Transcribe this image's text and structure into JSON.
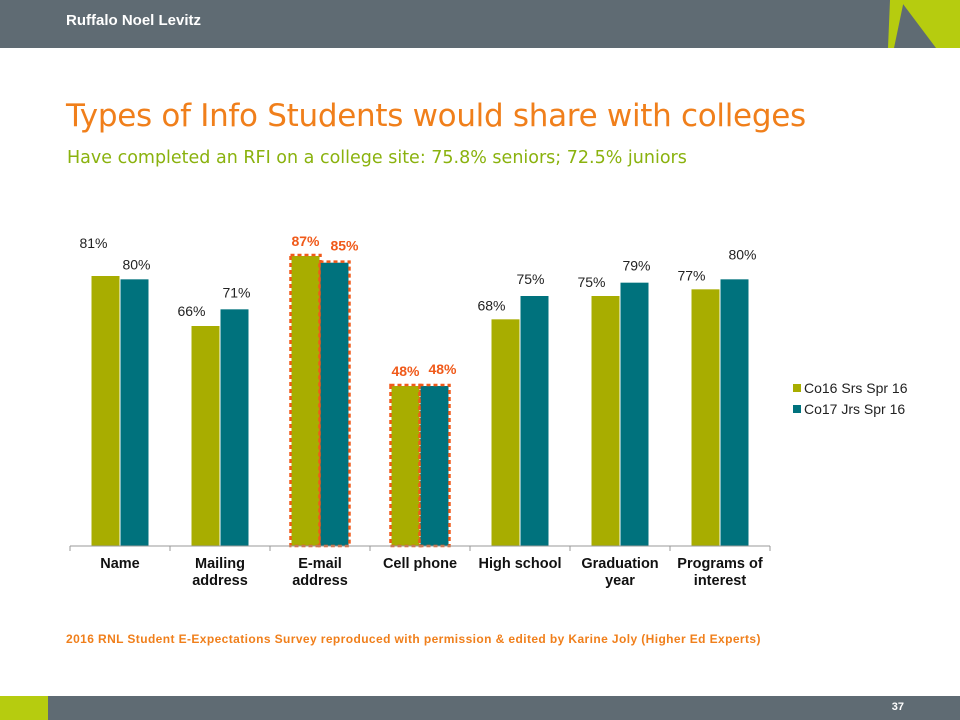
{
  "header": {
    "brand": "Ruffalo Noel Levitz"
  },
  "slide": {
    "title": "Types of Info Students would share with colleges",
    "subtitle": "Have completed an RFI on a college site: 75.8% seniors; 72.5% juniors",
    "source": "2016 RNL Student E-Expectations Survey reproduced with permission & edited by Karine Joly (Higher Ed Experts)",
    "page_number": "37"
  },
  "colors": {
    "header_bar": "#5f6b73",
    "accent_green": "#b6cc0f",
    "title_orange": "#f07f1b",
    "subtitle_green": "#8ab20e",
    "series_1": "#a8ad00",
    "series_2": "#00727d",
    "highlight": "#f05a1a"
  },
  "chart_data": {
    "type": "bar",
    "categories": [
      "Name",
      "Mailing address",
      "E-mail address",
      "Cell phone",
      "High school",
      "Graduation year",
      "Programs of interest"
    ],
    "category_lines": [
      [
        "Name"
      ],
      [
        "Mailing",
        "address"
      ],
      [
        "E-mail",
        "address"
      ],
      [
        "Cell phone"
      ],
      [
        "High school"
      ],
      [
        "Graduation",
        "year"
      ],
      [
        "Programs of",
        "interest"
      ]
    ],
    "series": [
      {
        "name": "Co16 Srs Spr 16",
        "values": [
          81,
          66,
          87,
          48,
          68,
          75,
          77
        ]
      },
      {
        "name": "Co17 Jrs Spr 16",
        "values": [
          80,
          71,
          85,
          48,
          75,
          79,
          80
        ]
      }
    ],
    "data_labels_suffix": "%",
    "highlighted_categories": [
      "E-mail address",
      "Cell phone"
    ],
    "ylim": [
      0,
      90
    ],
    "legend_position": "right",
    "grid": false,
    "y_axis_visible": false
  }
}
